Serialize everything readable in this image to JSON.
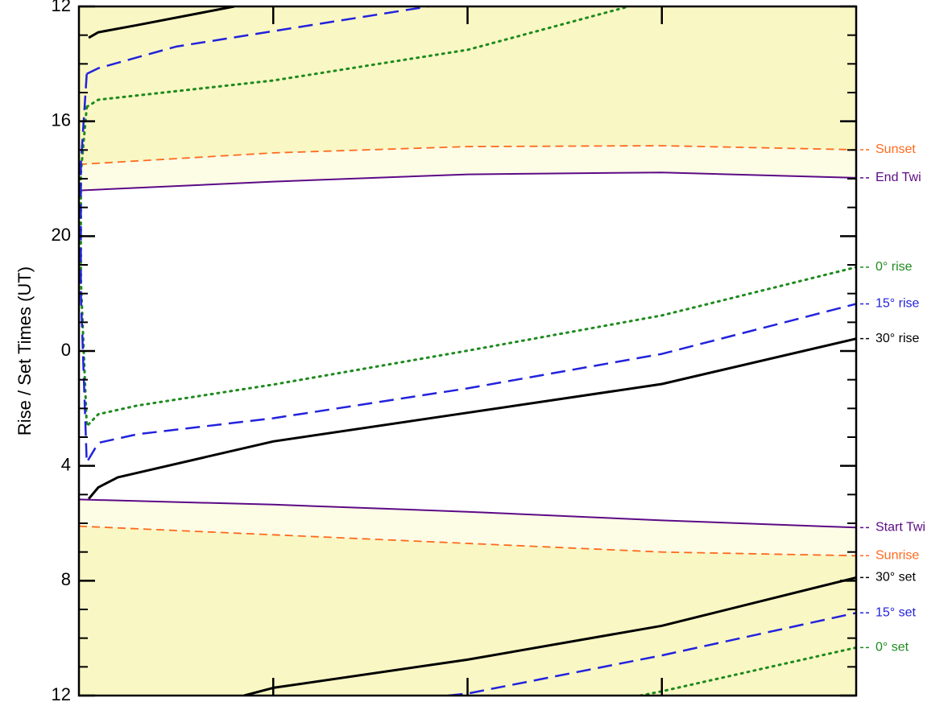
{
  "chart_data": {
    "type": "line",
    "y_label": "Rise / Set Times (UT)",
    "xlim": [
      0,
      4
    ],
    "xticks": [
      1,
      2,
      3
    ],
    "ylim": [
      36,
      12
    ],
    "yticks": [
      12,
      16,
      20,
      {
        "value": 24,
        "label": "0"
      },
      {
        "value": 28,
        "label": "4"
      },
      {
        "value": 32,
        "label": "8"
      },
      {
        "value": 36,
        "label": "12"
      }
    ],
    "minor_yticks": [
      13,
      14,
      15,
      17,
      18,
      19,
      21,
      22,
      23,
      25,
      26,
      27,
      29,
      30,
      31,
      33,
      34,
      35
    ],
    "day_color": "#f9f7c4",
    "twilight_color": "#fdfde6",
    "night_color": "#ffffff",
    "series": [
      {
        "name": "Sunset",
        "color": "#ff6a1f",
        "dash": "10,6",
        "width": 1.8,
        "x": [
          0,
          1,
          2,
          3,
          4
        ],
        "values": [
          17.5,
          17.1,
          16.88,
          16.85,
          16.99
        ]
      },
      {
        "name": "End Twi",
        "color": "#5c0a86",
        "dash": "none",
        "width": 2,
        "x": [
          0,
          1,
          2,
          3,
          4
        ],
        "values": [
          18.41,
          18.1,
          17.85,
          17.78,
          17.97
        ]
      },
      {
        "name": "0° rise",
        "color": "#1e8a1e",
        "dash": "2,6",
        "width": 3,
        "x": [
          0.04,
          0.01,
          0.01,
          0.04,
          0.1,
          0.3,
          1,
          2,
          3,
          4
        ],
        "values": [
          15.5,
          17.8,
          21.5,
          26.62,
          26.2,
          25.9,
          25.17,
          23.99,
          22.76,
          21.08
        ]
      },
      {
        "name": "15° rise",
        "color": "#2222dd",
        "dash": "18,9",
        "width": 2.5,
        "x": [
          0.04,
          0.01,
          0.01,
          0.04,
          0.1,
          0.3,
          1,
          2,
          3,
          4
        ],
        "values": [
          14.35,
          17.5,
          22,
          27.88,
          27.2,
          26.9,
          26.34,
          25.3,
          24.1,
          22.36
        ]
      },
      {
        "name": "30° rise",
        "color": "#000000",
        "dash": "none",
        "width": 3,
        "x": [
          0.05,
          0.1,
          0.2,
          1,
          2,
          3,
          4
        ],
        "values": [
          29.15,
          28.75,
          28.4,
          27.15,
          26.15,
          25.15,
          23.57
        ]
      },
      {
        "name": "Start Twi",
        "color": "#5c0a86",
        "dash": "none",
        "width": 2,
        "x": [
          0,
          1,
          2,
          3,
          4
        ],
        "values": [
          29.17,
          29.35,
          29.6,
          29.9,
          30.15
        ]
      },
      {
        "name": "Sunrise",
        "color": "#ff6a1f",
        "dash": "10,6",
        "width": 1.8,
        "x": [
          0,
          1,
          2,
          3,
          4
        ],
        "values": [
          30.1,
          30.4,
          30.7,
          31.0,
          31.13
        ]
      },
      {
        "name": "30° set",
        "color": "#000000",
        "dash": "none",
        "width": 3,
        "x": [
          0.05,
          0.1,
          0.3,
          0.8,
          null,
          0.85,
          1,
          2,
          3,
          4
        ],
        "values": [
          13.09,
          12.9,
          12.65,
          12.0,
          null,
          36,
          35.73,
          34.75,
          33.57,
          31.89
        ]
      },
      {
        "name": "15° set",
        "color": "#2222dd",
        "dash": "18,9",
        "width": 2.5,
        "x": [
          0.04,
          0.1,
          0.5,
          1.8,
          null,
          1.9,
          2,
          3,
          4
        ],
        "values": [
          14.35,
          14.15,
          13.4,
          12.0,
          null,
          36,
          35.93,
          34.6,
          33.12
        ]
      },
      {
        "name": "0° set",
        "color": "#1e8a1e",
        "dash": "2,6",
        "width": 3,
        "x": [
          0.04,
          0.1,
          1,
          2,
          2.83,
          null,
          2.89,
          3,
          4
        ],
        "values": [
          15.5,
          15.25,
          14.58,
          13.51,
          12.0,
          null,
          36,
          35.85,
          34.33
        ]
      }
    ]
  }
}
